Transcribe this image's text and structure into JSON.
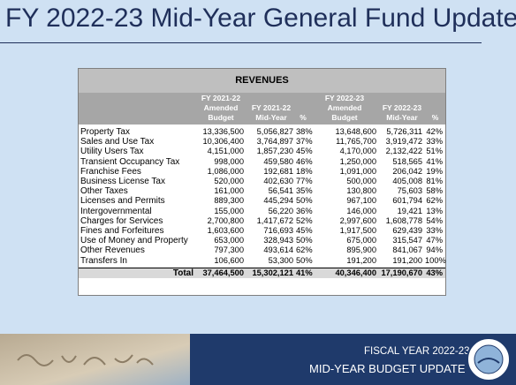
{
  "title": "FY 2022-23 Mid-Year General Fund Update",
  "table": {
    "heading": "REVENUES",
    "columns": [
      [
        "FY 2021-22",
        "Amended",
        "Budget"
      ],
      [
        "FY 2021-22",
        "Mid-Year"
      ],
      [
        "%"
      ],
      [
        "FY 2022-23",
        "Amended",
        "Budget"
      ],
      [
        "FY 2022-23",
        "Mid-Year"
      ],
      [
        "%"
      ]
    ],
    "rows": [
      [
        "Property Tax",
        "13,336,500",
        "5,056,827",
        "38%",
        "13,648,600",
        "5,726,311",
        "42%"
      ],
      [
        "Sales and Use Tax",
        "10,306,400",
        "3,764,897",
        "37%",
        "11,765,700",
        "3,919,472",
        "33%"
      ],
      [
        "Utility Users Tax",
        "4,151,000",
        "1,857,230",
        "45%",
        "4,170,000",
        "2,132,422",
        "51%"
      ],
      [
        "Transient Occupancy Tax",
        "998,000",
        "459,580",
        "46%",
        "1,250,000",
        "518,565",
        "41%"
      ],
      [
        "Franchise Fees",
        "1,086,000",
        "192,681",
        "18%",
        "1,091,000",
        "206,042",
        "19%"
      ],
      [
        "Business License Tax",
        "520,000",
        "402,630",
        "77%",
        "500,000",
        "405,008",
        "81%"
      ],
      [
        "Other Taxes",
        "161,000",
        "56,541",
        "35%",
        "130,800",
        "75,603",
        "58%"
      ],
      [
        "Licenses and Permits",
        "889,300",
        "445,294",
        "50%",
        "967,100",
        "601,794",
        "62%"
      ],
      [
        "Intergovernmental",
        "155,000",
        "56,220",
        "36%",
        "146,000",
        "19,421",
        "13%"
      ],
      [
        "Charges for Services",
        "2,700,800",
        "1,417,672",
        "52%",
        "2,997,600",
        "1,608,778",
        "54%"
      ],
      [
        "Fines and Forfeitures",
        "1,603,600",
        "716,693",
        "45%",
        "1,917,500",
        "629,439",
        "33%"
      ],
      [
        "Use of Money and Property",
        "653,000",
        "328,943",
        "50%",
        "675,000",
        "315,547",
        "47%"
      ],
      [
        "Other Revenues",
        "797,300",
        "493,614",
        "62%",
        "895,900",
        "841,067",
        "94%"
      ],
      [
        "Transfers In",
        "106,600",
        "53,300",
        "50%",
        "191,200",
        "191,200",
        "100%"
      ]
    ],
    "total": [
      "Total",
      "37,464,500",
      "15,302,121",
      "41%",
      "40,346,400",
      "17,190,670",
      "43%"
    ]
  },
  "footer": {
    "line1": "FISCAL YEAR 2022-23",
    "line2": "MID-YEAR BUDGET UPDATE"
  }
}
